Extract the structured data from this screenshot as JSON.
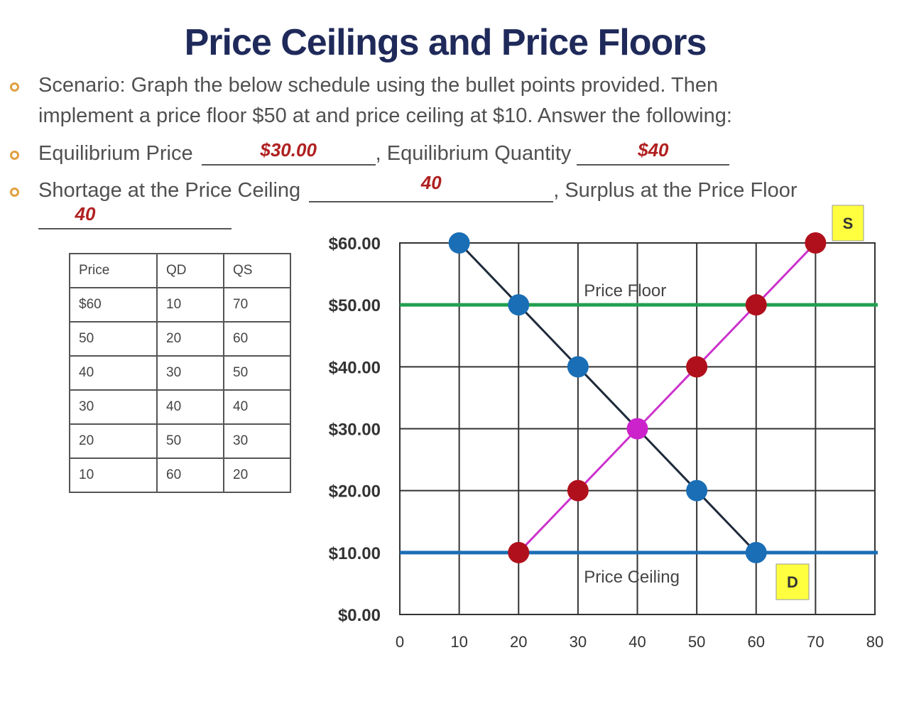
{
  "title": "Price Ceilings and Price Floors",
  "bullets": {
    "scenario_line1": "Scenario: Graph the below schedule using the bullet points provided. Then",
    "scenario_line2": "implement a price floor $50 at  and price ceiling at $10.  Answer the following:",
    "eq_price_label": "Equilibrium Price",
    "eq_price_answer": "$30.00",
    "eq_qty_label": ", Equilibrium Quantity",
    "eq_qty_answer": "$40",
    "shortage_label": "Shortage at the Price Ceiling",
    "shortage_answer": "40",
    "surplus_label": ", Surplus at the Price Floor",
    "surplus_answer": "40"
  },
  "schedule": {
    "headers": [
      "Price",
      "QD",
      "QS"
    ],
    "rows": [
      [
        "$60",
        "10",
        "70"
      ],
      [
        "50",
        "20",
        "60"
      ],
      [
        "40",
        "30",
        "50"
      ],
      [
        "30",
        "40",
        "40"
      ],
      [
        "20",
        "50",
        "30"
      ],
      [
        "10",
        "60",
        "20"
      ]
    ]
  },
  "chart_data": {
    "type": "line",
    "title": "",
    "xlabel": "",
    "ylabel": "",
    "xlim": [
      0,
      80
    ],
    "ylim": [
      0,
      60
    ],
    "x_ticks": [
      "0",
      "10",
      "20",
      "30",
      "40",
      "50",
      "60",
      "70",
      "80"
    ],
    "y_ticks": [
      "$0.00",
      "$10.00",
      "$20.00",
      "$30.00",
      "$40.00",
      "$50.00",
      "$60.00"
    ],
    "grid": true,
    "series": [
      {
        "label": "D",
        "color": "#1a6eb5",
        "line_color": "#1e2a3a",
        "points": [
          [
            10,
            60
          ],
          [
            20,
            50
          ],
          [
            30,
            40
          ],
          [
            40,
            30
          ],
          [
            50,
            20
          ],
          [
            60,
            10
          ]
        ]
      },
      {
        "label": "S",
        "color": "#b0101c",
        "line_color": "#cc33cc",
        "points": [
          [
            20,
            10
          ],
          [
            30,
            20
          ],
          [
            40,
            30
          ],
          [
            50,
            40
          ],
          [
            60,
            50
          ],
          [
            70,
            60
          ]
        ]
      }
    ],
    "equilibrium": {
      "x": 40,
      "y": 30,
      "color": "#cc22cc"
    },
    "horizontal_lines": [
      {
        "label": "Price Floor",
        "y": 50,
        "color": "#22a050"
      },
      {
        "label": "Price Ceiling",
        "y": 10,
        "color": "#1a6eb5"
      }
    ],
    "label_box_color": "#ffff40"
  }
}
